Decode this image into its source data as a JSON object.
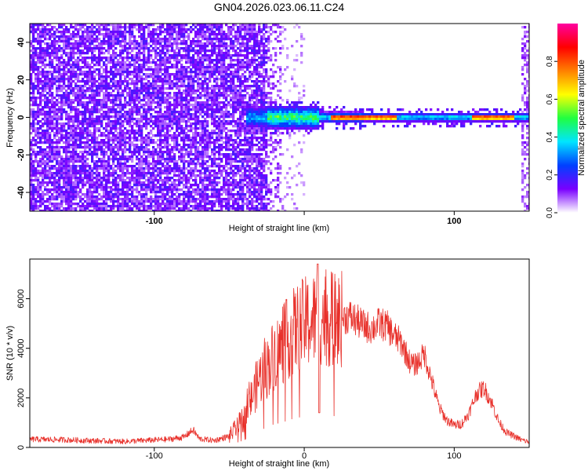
{
  "title": "GN04.2026.023.06.11.C24",
  "chart_data": [
    {
      "type": "heatmap",
      "name": "spectrogram",
      "xlabel": "Height of straight line (km)",
      "ylabel": "Frequency (Hz)",
      "xlim": [
        -183,
        150
      ],
      "ylim": [
        -50,
        50
      ],
      "xticks": [
        -100,
        0,
        100
      ],
      "xtick_labels": [
        "-100",
        "",
        "100"
      ],
      "yticks": [
        -40,
        -20,
        0,
        20,
        40
      ],
      "ytick_labels": [
        "-40",
        "-20",
        "0",
        "20",
        "40"
      ],
      "colorbar": {
        "label": "Normalized spectral amplitude",
        "range": [
          0,
          1
        ],
        "ticks": [
          0.0,
          0.2,
          0.4,
          0.6,
          0.8
        ],
        "tick_labels": [
          "0.0",
          "0.2",
          "0.4",
          "0.6",
          "0.8"
        ],
        "colors": [
          "#ffffff",
          "#7a00ff",
          "#0040ff",
          "#00e5ff",
          "#20ff40",
          "#ffff00",
          "#ff8000",
          "#ff0000",
          "#ff00a0"
        ]
      },
      "features": {
        "noise_region_km": [
          -183,
          -25
        ],
        "noise_amplitude": 0.12,
        "signal_line_frequency_hz": 0,
        "signal_start_km": -38,
        "strong_segments_km": [
          [
            18,
            62
          ],
          [
            112,
            140
          ]
        ]
      }
    },
    {
      "type": "line",
      "name": "snr",
      "xlabel": "Height of straight line (km)",
      "ylabel": "SNR (10 * v/v)",
      "xlim": [
        -183,
        150
      ],
      "ylim": [
        0,
        7600
      ],
      "xticks": [
        -100,
        0,
        100
      ],
      "xtick_labels": [
        "-100",
        "0",
        "100"
      ],
      "yticks": [
        0,
        2000,
        4000,
        6000
      ],
      "ytick_labels": [
        "0",
        "2000",
        "4000",
        "6000"
      ],
      "color": "#e8302a",
      "series": [
        {
          "name": "SNR",
          "x": [
            -183,
            -160,
            -140,
            -120,
            -100,
            -90,
            -80,
            -77,
            -74,
            -70,
            -60,
            -50,
            -45,
            -40,
            -35,
            -30,
            -25,
            -20,
            -15,
            -10,
            -5,
            0,
            5,
            10,
            15,
            20,
            25,
            30,
            35,
            40,
            45,
            50,
            55,
            60,
            65,
            70,
            73,
            77,
            80,
            85,
            90,
            95,
            100,
            105,
            110,
            115,
            120,
            125,
            130,
            135,
            140,
            145,
            150
          ],
          "values": [
            330,
            310,
            270,
            240,
            300,
            330,
            420,
            580,
            700,
            350,
            280,
            450,
            800,
            1200,
            2000,
            2800,
            3200,
            3800,
            4000,
            4500,
            4800,
            5000,
            5100,
            5300,
            5200,
            5100,
            5200,
            5300,
            5100,
            4900,
            4800,
            5000,
            4900,
            4500,
            4200,
            3500,
            3300,
            3500,
            3800,
            2700,
            1600,
            1100,
            900,
            950,
            1400,
            2200,
            2400,
            1800,
            1000,
            600,
            450,
            300,
            220
          ]
        }
      ]
    }
  ]
}
